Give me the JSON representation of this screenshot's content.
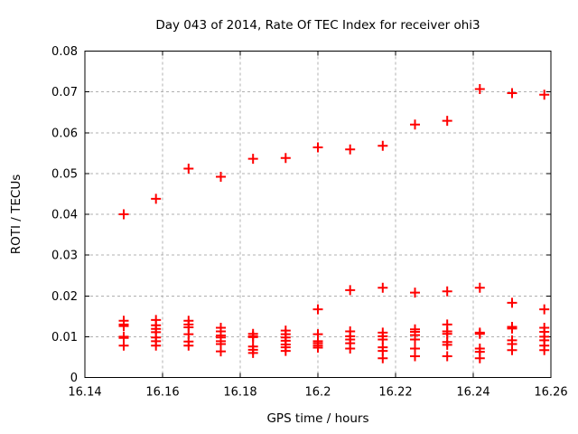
{
  "chart_data": {
    "type": "scatter",
    "title": "Day 043 of 2014, Rate Of TEC Index for receiver ohi3",
    "xlabel": "GPS time / hours",
    "ylabel": "ROTI / TECUs",
    "xlim": [
      16.14,
      16.26
    ],
    "ylim": [
      0,
      0.08
    ],
    "xtick_values": [
      16.14,
      16.16,
      16.18,
      16.2,
      16.22,
      16.24,
      16.26
    ],
    "xtick_labels": [
      "16.14",
      "16.16",
      "16.18",
      "16.2",
      "16.22",
      "16.24",
      "16.26"
    ],
    "ytick_values": [
      0,
      0.01,
      0.02,
      0.03,
      0.04,
      0.05,
      0.06,
      0.07,
      0.08
    ],
    "ytick_labels": [
      "0",
      "0.01",
      "0.02",
      "0.03",
      "0.04",
      "0.05",
      "0.06",
      "0.07",
      "0.08"
    ],
    "grid": true,
    "legend": "none",
    "marker": {
      "shape": "plus",
      "color": "#ff0000",
      "size": 11
    },
    "grid_color": "#b0b0b0",
    "axis_color": "#000000",
    "series": [
      {
        "name": "ROTI",
        "points": [
          [
            16.15,
            0.04
          ],
          [
            16.15,
            0.0139
          ],
          [
            16.15,
            0.013
          ],
          [
            16.15,
            0.0126
          ],
          [
            16.15,
            0.01
          ],
          [
            16.15,
            0.0097
          ],
          [
            16.15,
            0.0078
          ],
          [
            16.1583,
            0.0438
          ],
          [
            16.1583,
            0.0141
          ],
          [
            16.1583,
            0.0128
          ],
          [
            16.1583,
            0.0119
          ],
          [
            16.1583,
            0.0111
          ],
          [
            16.1583,
            0.0098
          ],
          [
            16.1583,
            0.0089
          ],
          [
            16.1583,
            0.0078
          ],
          [
            16.1667,
            0.0512
          ],
          [
            16.1667,
            0.0139
          ],
          [
            16.1667,
            0.013
          ],
          [
            16.1667,
            0.0123
          ],
          [
            16.1667,
            0.0106
          ],
          [
            16.1667,
            0.0088
          ],
          [
            16.1667,
            0.0078
          ],
          [
            16.175,
            0.0492
          ],
          [
            16.175,
            0.0122
          ],
          [
            16.175,
            0.0113
          ],
          [
            16.175,
            0.0103
          ],
          [
            16.175,
            0.0098
          ],
          [
            16.175,
            0.0089
          ],
          [
            16.175,
            0.0082
          ],
          [
            16.175,
            0.0064
          ],
          [
            16.1833,
            0.0536
          ],
          [
            16.1833,
            0.0107
          ],
          [
            16.1833,
            0.0101
          ],
          [
            16.1833,
            0.0099
          ],
          [
            16.1833,
            0.0076
          ],
          [
            16.1833,
            0.0068
          ],
          [
            16.1833,
            0.006
          ],
          [
            16.1917,
            0.0538
          ],
          [
            16.1917,
            0.0115
          ],
          [
            16.1917,
            0.0106
          ],
          [
            16.1917,
            0.0098
          ],
          [
            16.1917,
            0.009
          ],
          [
            16.1917,
            0.0081
          ],
          [
            16.1917,
            0.0074
          ],
          [
            16.1917,
            0.0065
          ],
          [
            16.2,
            0.0564
          ],
          [
            16.2,
            0.0167
          ],
          [
            16.2,
            0.0106
          ],
          [
            16.2,
            0.0089
          ],
          [
            16.2,
            0.0084
          ],
          [
            16.2,
            0.0078
          ],
          [
            16.2,
            0.0073
          ],
          [
            16.2083,
            0.0559
          ],
          [
            16.2083,
            0.0214
          ],
          [
            16.2083,
            0.0113
          ],
          [
            16.2083,
            0.0101
          ],
          [
            16.2083,
            0.0093
          ],
          [
            16.2083,
            0.0084
          ],
          [
            16.2083,
            0.0071
          ],
          [
            16.2167,
            0.0568
          ],
          [
            16.2167,
            0.022
          ],
          [
            16.2167,
            0.011
          ],
          [
            16.2167,
            0.0101
          ],
          [
            16.2167,
            0.0093
          ],
          [
            16.2167,
            0.0074
          ],
          [
            16.2167,
            0.0065
          ],
          [
            16.2167,
            0.0047
          ],
          [
            16.225,
            0.062
          ],
          [
            16.225,
            0.0208
          ],
          [
            16.225,
            0.0118
          ],
          [
            16.225,
            0.0112
          ],
          [
            16.225,
            0.0104
          ],
          [
            16.225,
            0.0093
          ],
          [
            16.225,
            0.0071
          ],
          [
            16.225,
            0.0052
          ],
          [
            16.2333,
            0.0629
          ],
          [
            16.2333,
            0.0211
          ],
          [
            16.2333,
            0.013
          ],
          [
            16.2333,
            0.0113
          ],
          [
            16.2333,
            0.0107
          ],
          [
            16.2333,
            0.0087
          ],
          [
            16.2333,
            0.008
          ],
          [
            16.2333,
            0.0052
          ],
          [
            16.2417,
            0.0707
          ],
          [
            16.2417,
            0.022
          ],
          [
            16.2417,
            0.011
          ],
          [
            16.2417,
            0.0107
          ],
          [
            16.2417,
            0.0071
          ],
          [
            16.2417,
            0.0063
          ],
          [
            16.2417,
            0.0047
          ],
          [
            16.25,
            0.0697
          ],
          [
            16.25,
            0.0183
          ],
          [
            16.25,
            0.0124
          ],
          [
            16.25,
            0.012
          ],
          [
            16.25,
            0.0091
          ],
          [
            16.25,
            0.0082
          ],
          [
            16.25,
            0.0067
          ],
          [
            16.2583,
            0.0693
          ],
          [
            16.2583,
            0.0167
          ],
          [
            16.2583,
            0.0122
          ],
          [
            16.2583,
            0.0112
          ],
          [
            16.2583,
            0.01
          ],
          [
            16.2583,
            0.0091
          ],
          [
            16.2583,
            0.0078
          ],
          [
            16.2583,
            0.0067
          ]
        ]
      }
    ]
  }
}
